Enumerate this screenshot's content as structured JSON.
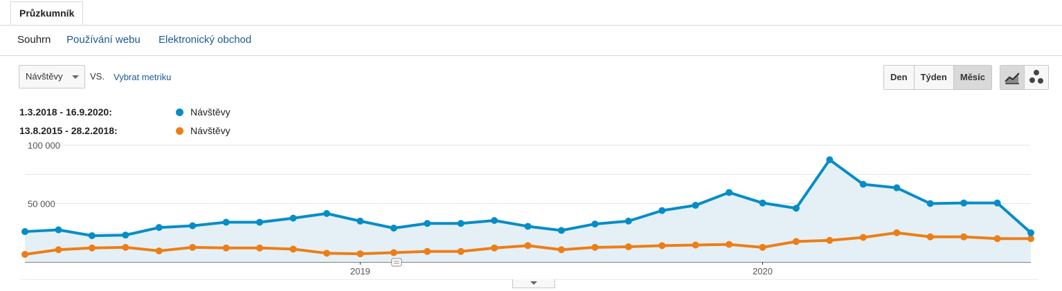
{
  "tabs": {
    "explorer": "Průzkumník"
  },
  "subnav": {
    "summary": "Souhrn",
    "site_usage": "Používání webu",
    "ecommerce": "Elektronický obchod"
  },
  "controls": {
    "metric": "Návštěvy",
    "vs": "VS.",
    "select_metric": "Vybrat metriku",
    "granularity": {
      "day": "Den",
      "week": "Týden",
      "month": "Měsíc",
      "selected": "Měsíc"
    },
    "view_icons": [
      "line-chart-icon",
      "motion-chart-icon"
    ]
  },
  "legend": [
    {
      "range": "1.3.2018 - 16.9.2020:",
      "series": "Návštěvy",
      "color": "#058dc7"
    },
    {
      "range": "13.8.2015 - 28.2.2018:",
      "series": "Návštěvy",
      "color": "#ed7e17"
    }
  ],
  "chart_data": {
    "type": "line",
    "y_ticks": [
      "100 000",
      "50 000"
    ],
    "x_ticks": [
      "2019",
      "2020"
    ],
    "ylim": [
      0,
      100000
    ],
    "grid": true,
    "series": [
      {
        "name": "Návštěvy",
        "color": "#058dc7",
        "fill": "#e4f0f6",
        "values": [
          26000,
          27500,
          22500,
          23000,
          29500,
          31000,
          34000,
          34000,
          37500,
          41500,
          35000,
          29000,
          33000,
          33000,
          35500,
          30500,
          27000,
          32500,
          35000,
          44000,
          48500,
          59500,
          50500,
          46000,
          87500,
          66500,
          63500,
          50000,
          50500,
          50500,
          25000
        ]
      },
      {
        "name": "Návštěvy",
        "color": "#ed7e17",
        "values": [
          6500,
          10500,
          12000,
          12500,
          9500,
          12500,
          12000,
          12000,
          11000,
          7500,
          7000,
          8000,
          9000,
          9000,
          12000,
          14000,
          10500,
          12500,
          13000,
          14000,
          14500,
          15000,
          12500,
          17500,
          18500,
          21000,
          25000,
          21500,
          21500,
          20000,
          20000
        ]
      }
    ]
  }
}
